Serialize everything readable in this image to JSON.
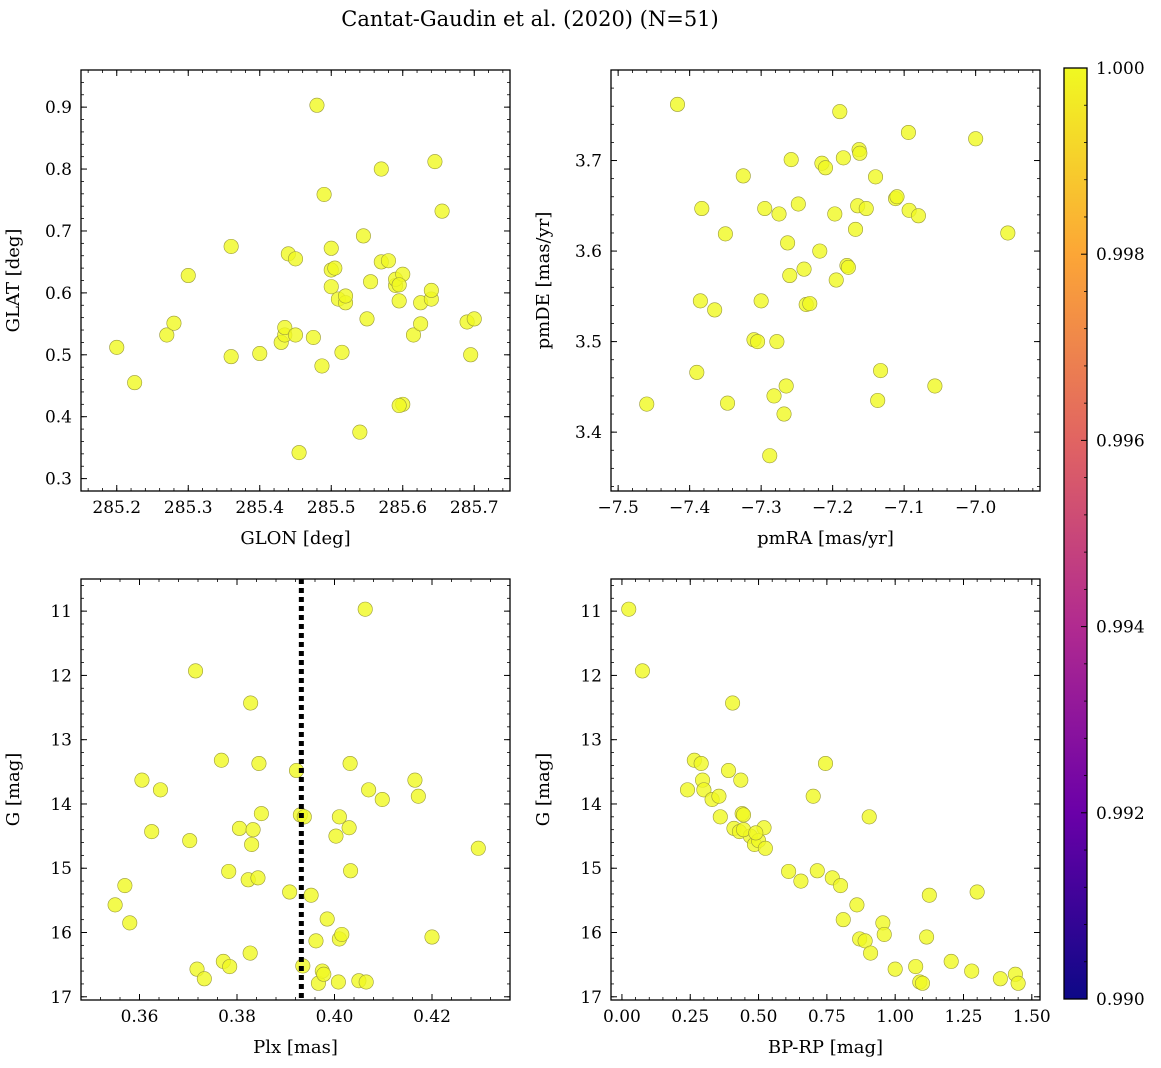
{
  "figure": {
    "title": "Cantat-Gaudin et al. (2020) (N=51)",
    "point_color": "#f0f921",
    "point_edge": "#9a9a3a",
    "vline_color": "#000000"
  },
  "colorbar": {
    "min": 0.99,
    "max": 1.0,
    "tick_labels": [
      "0.990",
      "0.992",
      "0.994",
      "0.996",
      "0.998",
      "1.000"
    ],
    "stops": [
      "#0d0887",
      "#6a00a8",
      "#b12a90",
      "#e16462",
      "#fca636",
      "#f0f921"
    ]
  },
  "chart_data": [
    {
      "type": "scatter",
      "id": "glon-glat",
      "xlabel": "GLON [deg]",
      "ylabel": "GLAT [deg]",
      "xlim": [
        285.15,
        285.75
      ],
      "ylim": [
        0.28,
        0.96
      ],
      "xticks": [
        285.2,
        285.3,
        285.4,
        285.5,
        285.6,
        285.7
      ],
      "xtick_labels": [
        "285.2",
        "285.3",
        "285.4",
        "285.5",
        "285.6",
        "285.7"
      ],
      "yticks": [
        0.3,
        0.4,
        0.5,
        0.6,
        0.7,
        0.8,
        0.9
      ],
      "ytick_labels": [
        "0.3",
        "0.4",
        "0.5",
        "0.6",
        "0.7",
        "0.8",
        "0.9"
      ],
      "inverted_y": false,
      "x": [
        285.2,
        285.225,
        285.27,
        285.28,
        285.3,
        285.36,
        285.36,
        285.4,
        285.43,
        285.435,
        285.435,
        285.44,
        285.45,
        285.45,
        285.455,
        285.475,
        285.48,
        285.487,
        285.49,
        285.5,
        285.5,
        285.5,
        285.505,
        285.51,
        285.515,
        285.52,
        285.52,
        285.54,
        285.545,
        285.55,
        285.555,
        285.57,
        285.57,
        285.58,
        285.59,
        285.59,
        285.595,
        285.6,
        285.6,
        285.595,
        285.615,
        285.625,
        285.625,
        285.64,
        285.64,
        285.645,
        285.655,
        285.69,
        285.695,
        285.7,
        285.595
      ],
      "y": [
        0.512,
        0.455,
        0.532,
        0.551,
        0.628,
        0.497,
        0.675,
        0.502,
        0.52,
        0.532,
        0.544,
        0.663,
        0.655,
        0.532,
        0.342,
        0.528,
        0.903,
        0.482,
        0.759,
        0.672,
        0.637,
        0.61,
        0.64,
        0.59,
        0.504,
        0.584,
        0.595,
        0.375,
        0.692,
        0.558,
        0.618,
        0.65,
        0.8,
        0.652,
        0.612,
        0.622,
        0.587,
        0.63,
        0.42,
        0.418,
        0.532,
        0.55,
        0.584,
        0.59,
        0.604,
        0.812,
        0.732,
        0.553,
        0.5,
        0.558,
        0.613
      ]
    },
    {
      "type": "scatter",
      "id": "pm",
      "xlabel": "pmRA [mas/yr]",
      "ylabel": "pmDE [mas/yr]",
      "xlim": [
        -7.51,
        -6.91
      ],
      "ylim": [
        3.335,
        3.8
      ],
      "xticks": [
        -7.5,
        -7.4,
        -7.3,
        -7.2,
        -7.1,
        -7.0
      ],
      "xtick_labels": [
        "−7.5",
        "−7.4",
        "−7.3",
        "−7.2",
        "−7.1",
        "−7.0"
      ],
      "yticks": [
        3.4,
        3.5,
        3.6,
        3.7
      ],
      "ytick_labels": [
        "3.4",
        "3.5",
        "3.6",
        "3.7"
      ],
      "inverted_y": false,
      "x": [
        -7.46,
        -7.417,
        -7.39,
        -7.385,
        -7.383,
        -7.365,
        -7.35,
        -7.347,
        -7.325,
        -7.31,
        -7.305,
        -7.3,
        -7.295,
        -7.288,
        -7.282,
        -7.278,
        -7.275,
        -7.268,
        -7.265,
        -7.263,
        -7.26,
        -7.258,
        -7.248,
        -7.24,
        -7.237,
        -7.232,
        -7.218,
        -7.215,
        -7.21,
        -7.197,
        -7.195,
        -7.19,
        -7.185,
        -7.18,
        -7.178,
        -7.168,
        -7.165,
        -7.163,
        -7.162,
        -7.153,
        -7.14,
        -7.137,
        -7.133,
        -7.112,
        -7.094,
        -7.093,
        -7.08,
        -7.057,
        -7.0,
        -6.955,
        -7.11
      ],
      "y": [
        3.431,
        3.762,
        3.466,
        3.545,
        3.647,
        3.535,
        3.619,
        3.432,
        3.683,
        3.502,
        3.5,
        3.545,
        3.647,
        3.374,
        3.44,
        3.5,
        3.641,
        3.42,
        3.451,
        3.609,
        3.573,
        3.701,
        3.652,
        3.58,
        3.541,
        3.542,
        3.6,
        3.697,
        3.692,
        3.641,
        3.568,
        3.754,
        3.703,
        3.584,
        3.582,
        3.624,
        3.65,
        3.712,
        3.708,
        3.647,
        3.682,
        3.435,
        3.468,
        3.658,
        3.731,
        3.645,
        3.639,
        3.451,
        3.724,
        3.62,
        3.66
      ]
    },
    {
      "type": "scatter",
      "id": "plx-g",
      "xlabel": "Plx [mas]",
      "ylabel": "G [mag]",
      "xlim": [
        0.348,
        0.436
      ],
      "ylim": [
        17.05,
        10.5
      ],
      "xticks": [
        0.36,
        0.38,
        0.4,
        0.42
      ],
      "xtick_labels": [
        "0.36",
        "0.38",
        "0.40",
        "0.42"
      ],
      "yticks": [
        11,
        12,
        13,
        14,
        15,
        16,
        17
      ],
      "ytick_labels": [
        "11",
        "12",
        "13",
        "14",
        "15",
        "16",
        "17"
      ],
      "inverted_y": true,
      "vline_x": 0.3932,
      "x": [
        0.355,
        0.357,
        0.358,
        0.3605,
        0.3625,
        0.3643,
        0.3703,
        0.3715,
        0.3718,
        0.3733,
        0.3768,
        0.3772,
        0.3783,
        0.3785,
        0.3805,
        0.3823,
        0.3827,
        0.3828,
        0.383,
        0.3833,
        0.3843,
        0.3845,
        0.385,
        0.3908,
        0.3922,
        0.393,
        0.3935,
        0.3938,
        0.3952,
        0.3962,
        0.3967,
        0.3975,
        0.3978,
        0.3985,
        0.4003,
        0.4008,
        0.401,
        0.401,
        0.4015,
        0.403,
        0.4032,
        0.4033,
        0.405,
        0.4063,
        0.4065,
        0.407,
        0.4098,
        0.4165,
        0.4172,
        0.42,
        0.4295
      ],
      "y": [
        15.57,
        15.27,
        15.85,
        13.63,
        14.43,
        13.78,
        14.57,
        11.93,
        16.57,
        16.72,
        13.32,
        16.45,
        15.05,
        16.53,
        14.38,
        15.18,
        16.32,
        12.43,
        14.63,
        14.4,
        15.15,
        13.37,
        14.15,
        15.37,
        13.48,
        14.17,
        16.52,
        14.2,
        15.42,
        16.13,
        16.79,
        16.6,
        16.65,
        15.79,
        14.5,
        16.77,
        14.2,
        16.1,
        16.03,
        14.37,
        13.37,
        15.04,
        16.75,
        10.97,
        16.77,
        13.78,
        13.93,
        13.63,
        13.88,
        16.07,
        14.69
      ]
    },
    {
      "type": "scatter",
      "id": "cmd",
      "xlabel": "BP-RP [mag]",
      "ylabel": "G [mag]",
      "xlim": [
        -0.04,
        1.53
      ],
      "ylim": [
        17.05,
        10.5
      ],
      "xticks": [
        0.0,
        0.25,
        0.5,
        0.75,
        1.0,
        1.25,
        1.5
      ],
      "xtick_labels": [
        "0.00",
        "0.25",
        "0.50",
        "0.75",
        "1.00",
        "1.25",
        "1.50"
      ],
      "yticks": [
        11,
        12,
        13,
        14,
        15,
        16,
        17
      ],
      "ytick_labels": [
        "11",
        "12",
        "13",
        "14",
        "15",
        "16",
        "17"
      ],
      "inverted_y": true,
      "x": [
        0.025,
        0.075,
        0.24,
        0.265,
        0.29,
        0.295,
        0.3,
        0.33,
        0.355,
        0.36,
        0.39,
        0.405,
        0.41,
        0.43,
        0.435,
        0.44,
        0.445,
        0.47,
        0.485,
        0.5,
        0.52,
        0.525,
        0.61,
        0.655,
        0.7,
        0.715,
        0.745,
        0.77,
        0.8,
        0.81,
        0.86,
        0.87,
        0.89,
        0.905,
        0.91,
        0.955,
        0.96,
        1.0,
        1.075,
        1.09,
        1.1,
        1.115,
        1.125,
        1.205,
        1.28,
        1.3,
        1.385,
        1.44,
        1.45,
        0.445,
        0.49
      ],
      "y": [
        10.97,
        11.93,
        13.78,
        13.32,
        13.37,
        13.63,
        13.78,
        13.93,
        13.88,
        14.2,
        13.48,
        12.43,
        14.38,
        14.43,
        13.63,
        14.15,
        14.17,
        14.5,
        14.63,
        14.57,
        14.37,
        14.69,
        15.05,
        15.2,
        13.88,
        15.04,
        13.37,
        15.15,
        15.27,
        15.8,
        15.57,
        16.1,
        16.13,
        14.2,
        16.32,
        15.85,
        16.03,
        16.57,
        16.53,
        16.77,
        16.79,
        16.07,
        15.42,
        16.45,
        16.6,
        15.37,
        16.72,
        16.65,
        16.79,
        14.4,
        14.45
      ]
    }
  ]
}
